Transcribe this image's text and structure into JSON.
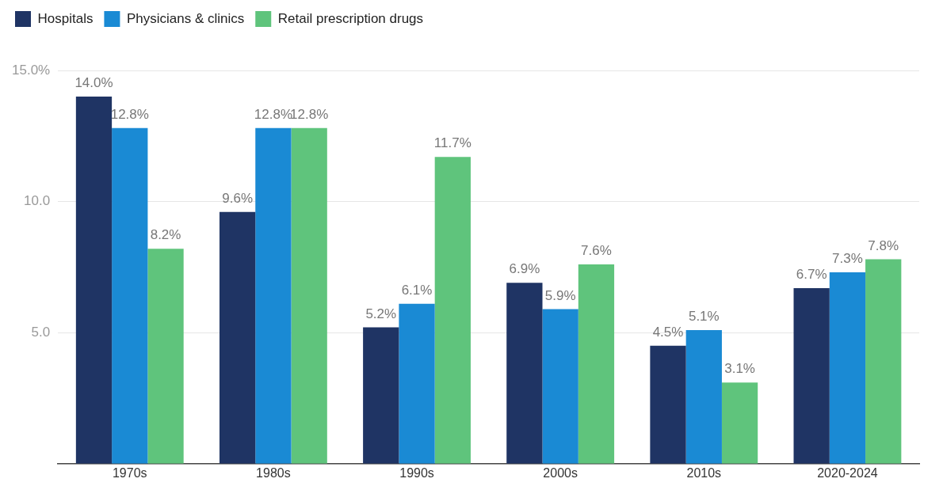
{
  "chart_data": {
    "type": "bar",
    "categories": [
      "1970s",
      "1980s",
      "1990s",
      "2000s",
      "2010s",
      "2020-2024"
    ],
    "series": [
      {
        "name": "Hospitals",
        "color": "#1f3464",
        "values": [
          14.0,
          9.6,
          5.2,
          6.9,
          4.5,
          6.7
        ],
        "value_labels": [
          "14.0%",
          "9.6%",
          "5.2%",
          "6.9%",
          "4.5%",
          "6.7%"
        ]
      },
      {
        "name": "Physicians & clinics",
        "color": "#1a8ad4",
        "values": [
          12.8,
          12.8,
          6.1,
          5.9,
          5.1,
          7.3
        ],
        "value_labels": [
          "12.8%",
          "12.8%",
          "6.1%",
          "5.9%",
          "5.1%",
          "7.3%"
        ]
      },
      {
        "name": "Retail prescription drugs",
        "color": "#5fc47c",
        "values": [
          8.2,
          12.8,
          11.7,
          7.6,
          3.1,
          7.8
        ],
        "value_labels": [
          "8.2%",
          "12.8%",
          "11.7%",
          "7.6%",
          "3.1%",
          "7.8%"
        ]
      }
    ],
    "ylim": [
      0,
      15
    ],
    "yticks": [
      {
        "value": 5,
        "label": "5.0"
      },
      {
        "value": 10,
        "label": "10.0"
      },
      {
        "value": 15,
        "label": "15.0%"
      }
    ],
    "grid": "y",
    "legend": "top left"
  }
}
